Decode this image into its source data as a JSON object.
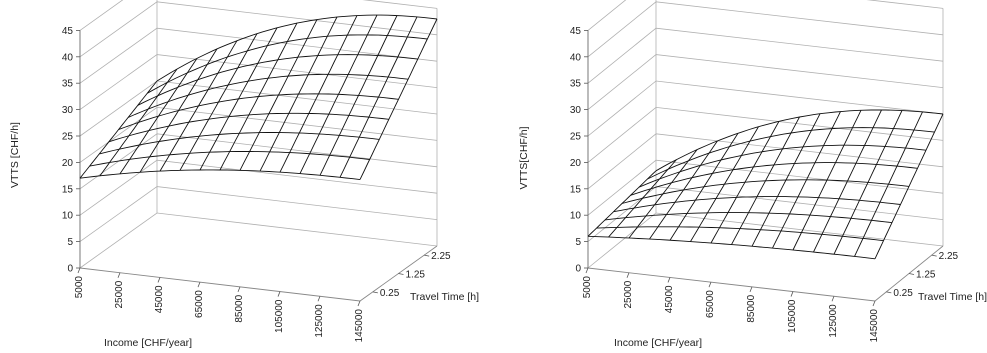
{
  "chart_data": [
    {
      "type": "surface",
      "zlabel": "VTTS [CHF/h]",
      "xlabel": "Income [CHF/year]",
      "ylabel": "Travel Time [h]",
      "z_ticks": [
        "0",
        "5",
        "10",
        "15",
        "20",
        "25",
        "30",
        "35",
        "40",
        "45"
      ],
      "x_ticks": [
        "5000",
        "25000",
        "45000",
        "65000",
        "85000",
        "105000",
        "125000",
        "145000"
      ],
      "y_ticks": [
        "0.25",
        "1.25",
        "2.25"
      ],
      "zlim": [
        0,
        45
      ],
      "xlim": [
        5000,
        145000
      ],
      "ylim": [
        0.25,
        2.25
      ],
      "grid": "on",
      "surface": {
        "x_count": 15,
        "y_count": 9,
        "corner_values": {
          "income_5000_time_0.25": 17,
          "income_5000_time_2.25": 25,
          "income_145000_time_0.25": 23,
          "income_145000_time_2.25": 43
        },
        "peak_value": 43
      }
    },
    {
      "type": "surface",
      "zlabel": "VTTS[CHF/h]",
      "xlabel": "Income [CHF/year]",
      "ylabel": "Travel Time [h]",
      "z_ticks": [
        "0",
        "5",
        "10",
        "15",
        "20",
        "25",
        "30",
        "35",
        "40",
        "45"
      ],
      "x_ticks": [
        "5000",
        "25000",
        "45000",
        "65000",
        "85000",
        "105000",
        "125000",
        "145000"
      ],
      "y_ticks": [
        "0.25",
        "1.25",
        "2.25"
      ],
      "zlim": [
        0,
        45
      ],
      "xlim": [
        5000,
        145000
      ],
      "ylim": [
        0.25,
        2.25
      ],
      "grid": "on",
      "surface": {
        "x_count": 15,
        "y_count": 9,
        "corner_values": {
          "income_5000_time_0.25": 6,
          "income_5000_time_2.25": 8,
          "income_145000_time_0.25": 8,
          "income_145000_time_2.25": 25
        },
        "peak_value": 25
      }
    }
  ]
}
